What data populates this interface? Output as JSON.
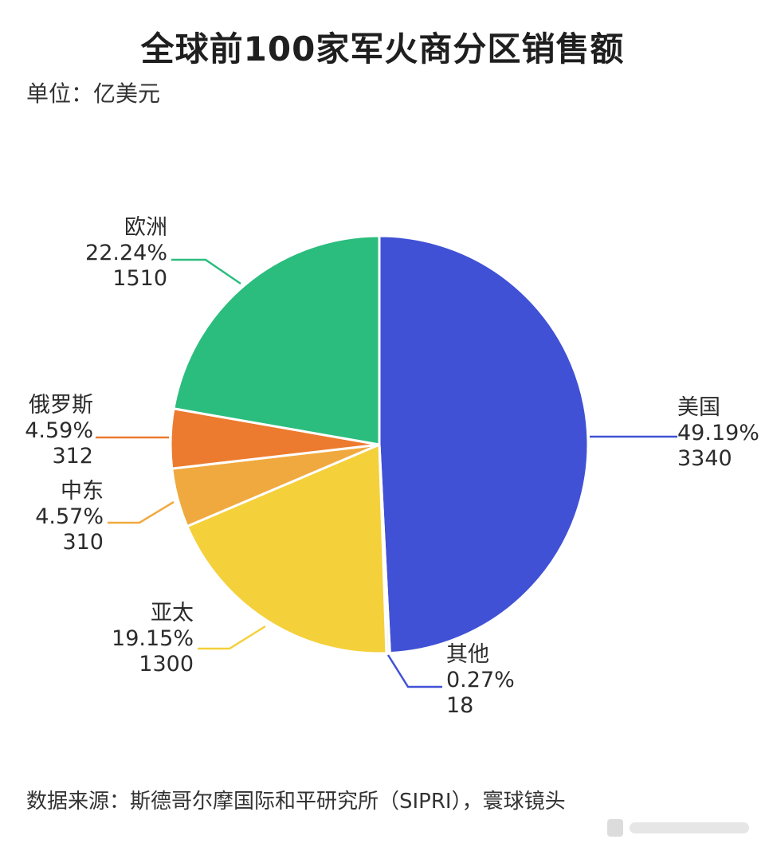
{
  "header": {
    "title": "全球前100家军火商分区销售额",
    "unit": "单位：亿美元"
  },
  "footer": {
    "source": "数据来源：斯德哥尔摩国际和平研究所（SIPRI），寰球镜头"
  },
  "chart_data": {
    "type": "pie",
    "title": "全球前100家军火商分区销售额",
    "unit": "亿美元",
    "start": "12 o'clock, clockwise",
    "slices": [
      {
        "name": "美国",
        "value": 3340,
        "percent": "49.19%",
        "color": "#4051d6"
      },
      {
        "name": "其他",
        "value": 18,
        "percent": "0.27%",
        "color": "#f2f2f2"
      },
      {
        "name": "亚太",
        "value": 1300,
        "percent": "19.15%",
        "color": "#f4d03b"
      },
      {
        "name": "中东",
        "value": 310,
        "percent": "4.57%",
        "color": "#f0a93e"
      },
      {
        "name": "俄罗斯",
        "value": 312,
        "percent": "4.59%",
        "color": "#ec7b2f"
      },
      {
        "name": "欧洲",
        "value": 1510,
        "percent": "22.24%",
        "color": "#2bbd7e"
      }
    ]
  }
}
